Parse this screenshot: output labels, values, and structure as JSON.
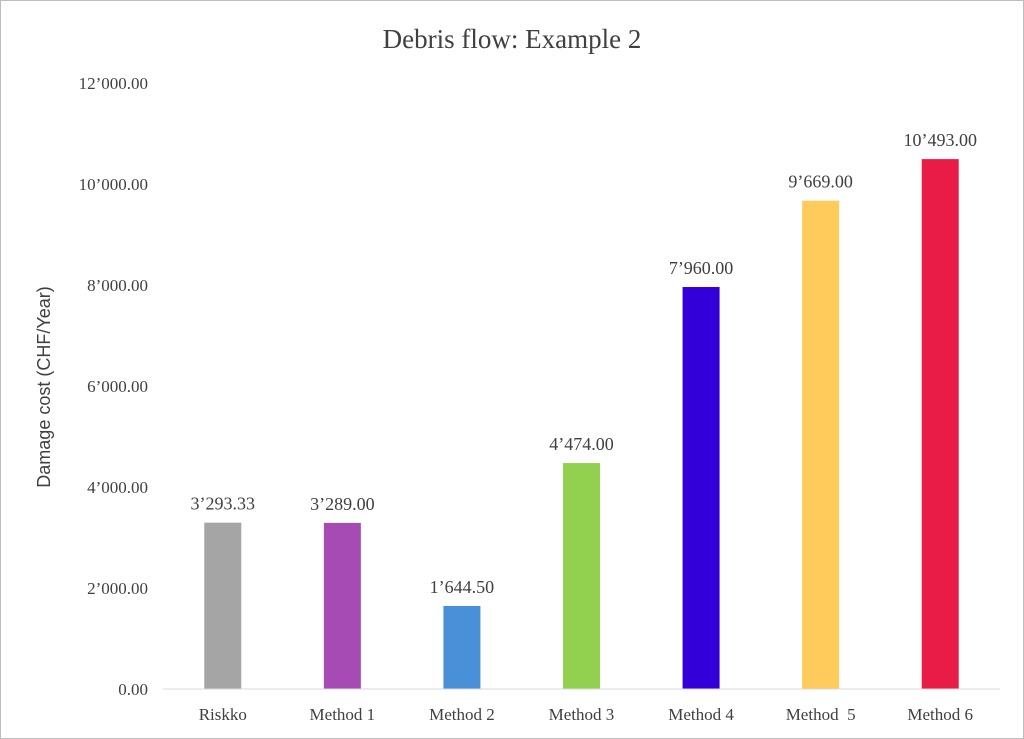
{
  "chart_data": {
    "type": "bar",
    "title": "Debris flow: Example 2",
    "xlabel": "",
    "ylabel": "Damage cost (CHF/Year)",
    "ylim": [
      0,
      12000
    ],
    "y_ticks": [
      {
        "value": 0,
        "label": "0.00"
      },
      {
        "value": 2000,
        "label": "2’000.00"
      },
      {
        "value": 4000,
        "label": "4’000.00"
      },
      {
        "value": 6000,
        "label": "6’000.00"
      },
      {
        "value": 8000,
        "label": "8’000.00"
      },
      {
        "value": 10000,
        "label": "10’000.00"
      },
      {
        "value": 12000,
        "label": "12’000.00"
      }
    ],
    "grid": false,
    "legend": "none",
    "bars": [
      {
        "category": "Riskko",
        "value": 3293.33,
        "label": "3’293.33",
        "color": "#a5a5a5"
      },
      {
        "category": "Method 1",
        "value": 3289.0,
        "label": "3’289.00",
        "color": "#a54bb3"
      },
      {
        "category": "Method 2",
        "value": 1644.5,
        "label": "1’644.50",
        "color": "#4a90d9"
      },
      {
        "category": "Method 3",
        "value": 4474.0,
        "label": "4’474.00",
        "color": "#92d050"
      },
      {
        "category": "Method 4",
        "value": 7960.0,
        "label": "7’960.00",
        "color": "#3300d9"
      },
      {
        "category": "Method  5",
        "value": 9669.0,
        "label": "9’669.00",
        "color": "#ffcc5c"
      },
      {
        "category": "Method 6",
        "value": 10493.0,
        "label": "10’493.00",
        "color": "#e81c46"
      }
    ]
  }
}
